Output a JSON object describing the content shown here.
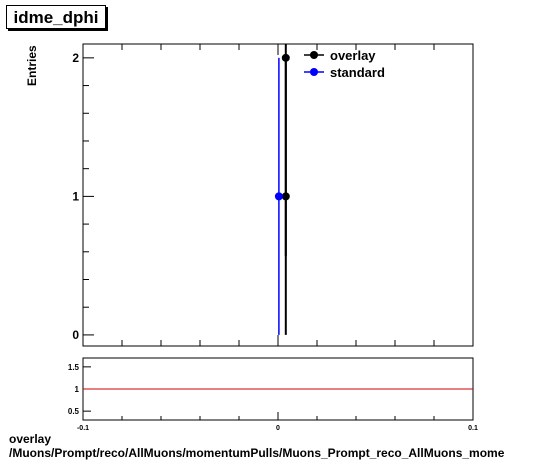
{
  "title": "idme_dphi",
  "footer": {
    "line1": "overlay",
    "line2": "/Muons/Prompt/reco/AllMuons/momentumPulls/Muons_Prompt_reco_AllMuons_mome"
  },
  "chart_data": [
    {
      "type": "line",
      "title": "idme_dphi",
      "xlabel": "",
      "ylabel": "Entries",
      "xlim": [
        -0.1,
        0.1
      ],
      "ylim": [
        -0.08,
        2.1
      ],
      "y_ticks": [
        0,
        1,
        2
      ],
      "legend_position": "top-right",
      "series": [
        {
          "name": "overlay",
          "color": "#000000",
          "points": [
            {
              "x": 0.004,
              "y": 2,
              "y_low": 0.57,
              "y_high": 2.1
            },
            {
              "x": 0.004,
              "y": 1,
              "y_low": 0.0,
              "y_high": 2.0
            }
          ]
        },
        {
          "name": "standard",
          "color": "#0000ff",
          "points": [
            {
              "x": 0.002,
              "y": 1,
              "y_low": 0.0,
              "y_high": 2.0
            }
          ]
        }
      ]
    },
    {
      "type": "line",
      "title": "",
      "xlabel": "",
      "ylabel": "",
      "xlim": [
        -0.1,
        0.1
      ],
      "ylim": [
        0.3,
        1.7
      ],
      "x_ticks": [
        -0.1,
        0,
        0.1
      ],
      "x_tick_labels": [
        "-0.1",
        "0",
        "0.1"
      ],
      "y_ticks": [
        0.5,
        1,
        1.5
      ],
      "y_tick_labels": [
        "0.5",
        "1",
        "1.5"
      ],
      "reference_line": {
        "y": 1,
        "color": "#cc0000"
      }
    }
  ]
}
